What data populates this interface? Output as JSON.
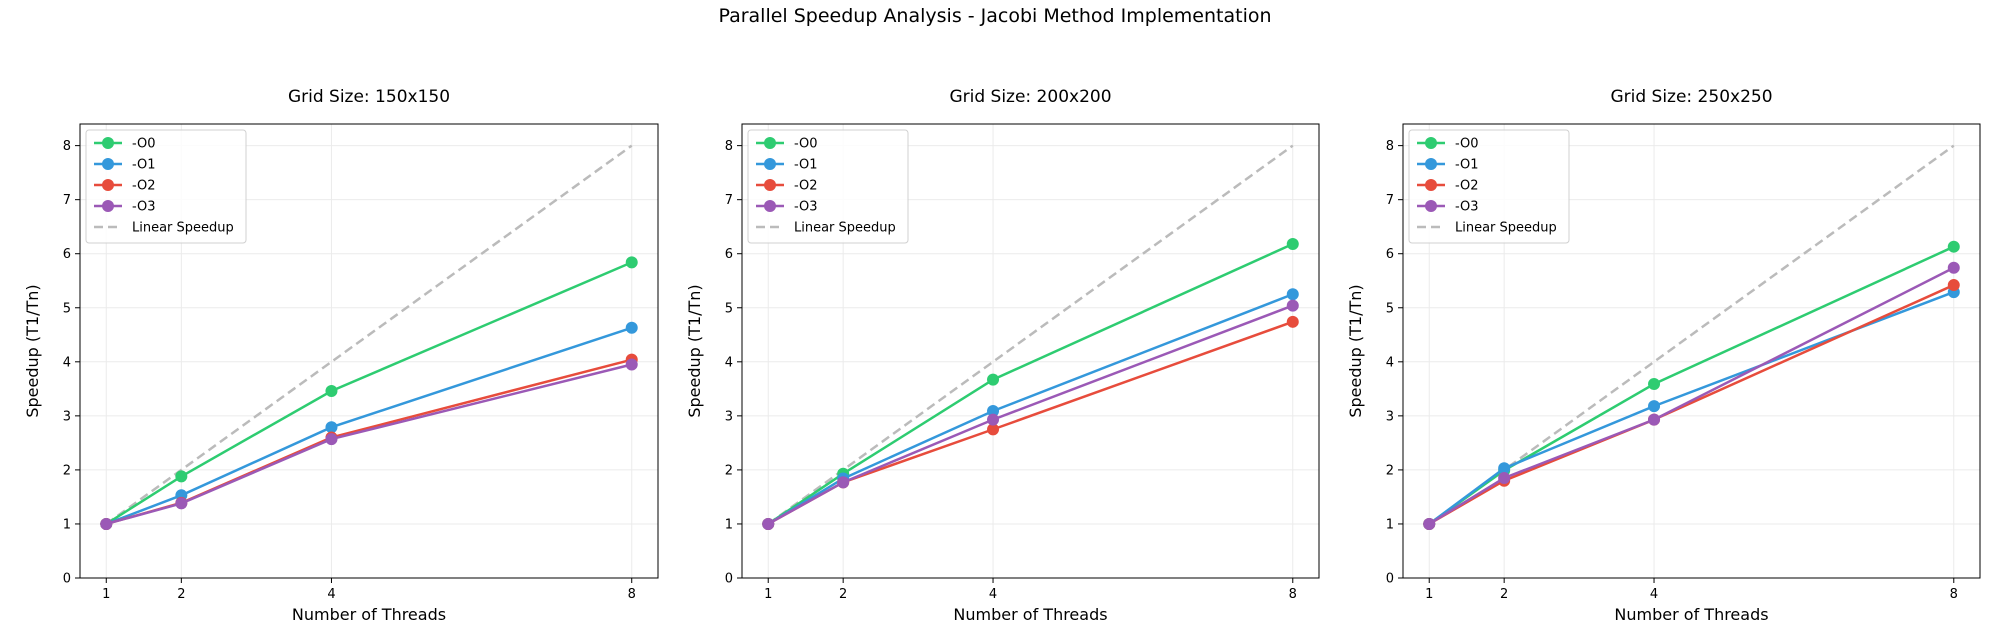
{
  "figure": {
    "title": "Parallel Speedup Analysis - Jacobi Method Implementation"
  },
  "chart_data": [
    {
      "type": "line",
      "title": "Grid Size: 150x150",
      "xlabel": "Number of Threads",
      "ylabel": "Speedup (T1/Tn)",
      "x": [
        1,
        2,
        4,
        8
      ],
      "xticks": [
        1,
        2,
        4,
        8
      ],
      "yticks": [
        0,
        1,
        2,
        3,
        4,
        5,
        6,
        7,
        8
      ],
      "xlim": [
        0.65,
        8.35
      ],
      "ylim": [
        0,
        8.4
      ],
      "grid": true,
      "legend_position": "upper-left",
      "series": [
        {
          "name": "-O0",
          "values": [
            1.0,
            1.88,
            3.46,
            5.84
          ],
          "color": "#2ecc71"
        },
        {
          "name": "-O1",
          "values": [
            1.0,
            1.53,
            2.79,
            4.63
          ],
          "color": "#3498db"
        },
        {
          "name": "-O2",
          "values": [
            1.0,
            1.39,
            2.6,
            4.04
          ],
          "color": "#e74c3c"
        },
        {
          "name": "-O3",
          "values": [
            1.0,
            1.38,
            2.57,
            3.95
          ],
          "color": "#9b59b6"
        }
      ],
      "reference": {
        "name": "Linear Speedup",
        "values": [
          1,
          2,
          4,
          8
        ],
        "color": "#bbbbbb"
      }
    },
    {
      "type": "line",
      "title": "Grid Size: 200x200",
      "xlabel": "Number of Threads",
      "ylabel": "Speedup (T1/Tn)",
      "x": [
        1,
        2,
        4,
        8
      ],
      "xticks": [
        1,
        2,
        4,
        8
      ],
      "yticks": [
        0,
        1,
        2,
        3,
        4,
        5,
        6,
        7,
        8
      ],
      "xlim": [
        0.65,
        8.35
      ],
      "ylim": [
        0,
        8.4
      ],
      "grid": true,
      "legend_position": "upper-left",
      "series": [
        {
          "name": "-O0",
          "values": [
            1.0,
            1.93,
            3.67,
            6.18
          ],
          "color": "#2ecc71"
        },
        {
          "name": "-O1",
          "values": [
            1.0,
            1.84,
            3.09,
            5.25
          ],
          "color": "#3498db"
        },
        {
          "name": "-O2",
          "values": [
            1.0,
            1.77,
            2.75,
            4.74
          ],
          "color": "#e74c3c"
        },
        {
          "name": "-O3",
          "values": [
            1.0,
            1.77,
            2.93,
            5.04
          ],
          "color": "#9b59b6"
        }
      ],
      "reference": {
        "name": "Linear Speedup",
        "values": [
          1,
          2,
          4,
          8
        ],
        "color": "#bbbbbb"
      }
    },
    {
      "type": "line",
      "title": "Grid Size: 250x250",
      "xlabel": "Number of Threads",
      "ylabel": "Speedup (T1/Tn)",
      "x": [
        1,
        2,
        4,
        8
      ],
      "xticks": [
        1,
        2,
        4,
        8
      ],
      "yticks": [
        0,
        1,
        2,
        3,
        4,
        5,
        6,
        7,
        8
      ],
      "xlim": [
        0.65,
        8.35
      ],
      "ylim": [
        0,
        8.4
      ],
      "grid": true,
      "legend_position": "upper-left",
      "series": [
        {
          "name": "-O0",
          "values": [
            1.0,
            1.99,
            3.59,
            6.13
          ],
          "color": "#2ecc71"
        },
        {
          "name": "-O1",
          "values": [
            1.0,
            2.03,
            3.18,
            5.29
          ],
          "color": "#3498db"
        },
        {
          "name": "-O2",
          "values": [
            1.0,
            1.8,
            2.93,
            5.42
          ],
          "color": "#e74c3c"
        },
        {
          "name": "-O3",
          "values": [
            1.0,
            1.85,
            2.93,
            5.74
          ],
          "color": "#9b59b6"
        }
      ],
      "reference": {
        "name": "Linear Speedup",
        "values": [
          1,
          2,
          4,
          8
        ],
        "color": "#bbbbbb"
      }
    }
  ]
}
